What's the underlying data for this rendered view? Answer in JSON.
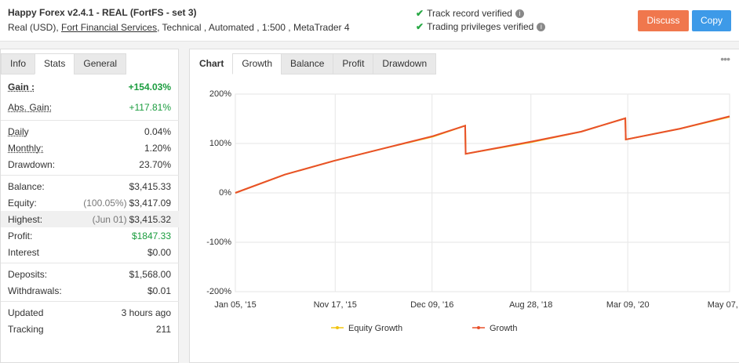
{
  "header": {
    "title": "Happy Forex v2.4.1 - REAL (FortFS - set 3)",
    "account": "Real (USD),",
    "broker": "Fort Financial Services",
    "details": ", Technical , Automated , 1:500 , MetaTrader 4",
    "verifications": [
      "Track record verified",
      "Trading privileges verified"
    ],
    "buttons": [
      "Discuss",
      "Copy"
    ]
  },
  "stats": {
    "tabs": [
      "Info",
      "Stats",
      "General"
    ],
    "active_tab": 1,
    "groups": [
      [
        {
          "label": "Gain :",
          "value": "+154.03%",
          "color": "#1a9c3e",
          "bold": true,
          "underline": true
        },
        {
          "label": "Abs. Gain:",
          "value": "+117.81%",
          "color": "#1a9c3e",
          "underline": true
        }
      ],
      [
        {
          "label": "Daily",
          "value": "0.04%",
          "underline": true
        },
        {
          "label": "Monthly:",
          "value": "1.20%",
          "underline": true
        },
        {
          "label": "Drawdown:",
          "value": "23.70%"
        }
      ],
      [
        {
          "label": "Balance:",
          "value": "$3,415.33"
        },
        {
          "label": "Equity:",
          "note": "(100.05%)",
          "value": "$3,417.09"
        },
        {
          "label": "Highest:",
          "note": "(Jun 01)",
          "value": "$3,415.32",
          "highlight": true
        },
        {
          "label": "Profit:",
          "value": "$1847.33",
          "color": "#1a9c3e"
        },
        {
          "label": "Interest",
          "value": "$0.00"
        }
      ],
      [
        {
          "label": "Deposits:",
          "value": "$1,568.00"
        },
        {
          "label": "Withdrawals:",
          "value": "$0.01"
        }
      ],
      [
        {
          "label": "Updated",
          "value": "3 hours ago"
        },
        {
          "label": "Tracking",
          "value": "211"
        }
      ]
    ]
  },
  "chart_panel": {
    "tabs": [
      "Chart",
      "Growth",
      "Balance",
      "Profit",
      "Drawdown"
    ],
    "active_tab": 1
  },
  "chart_data": {
    "type": "line",
    "x": [
      0,
      10,
      20,
      30,
      40,
      46.5,
      46.6,
      60,
      70,
      78.9,
      79,
      90,
      100
    ],
    "series": [
      {
        "name": "Equity Growth",
        "color": "#f2c40f",
        "values": [
          0,
          37,
          65,
          90,
          114,
          136,
          79,
          103,
          124,
          151,
          108,
          130,
          154
        ]
      },
      {
        "name": "Growth",
        "color": "#e8502b",
        "values": [
          0,
          37,
          65,
          90,
          115,
          136,
          79,
          104,
          124,
          151,
          108,
          130,
          155
        ]
      }
    ],
    "xlim": [
      0,
      100
    ],
    "xticks": [
      {
        "value": 0,
        "label": "Jan 05, '15"
      },
      {
        "value": 20.2,
        "label": "Nov 17, '15"
      },
      {
        "value": 39.8,
        "label": "Dec 09, '16"
      },
      {
        "value": 59.8,
        "label": "Aug 28, '18"
      },
      {
        "value": 79.4,
        "label": "Mar 09, '20"
      },
      {
        "value": 100,
        "label": "May 07, '21"
      }
    ],
    "ylim": [
      -200,
      200
    ],
    "yticks": [
      {
        "value": -200,
        "label": "-200%"
      },
      {
        "value": -100,
        "label": "-100%"
      },
      {
        "value": 0,
        "label": "0%"
      },
      {
        "value": 100,
        "label": "100%"
      },
      {
        "value": 200,
        "label": "200%"
      }
    ],
    "grid": true
  }
}
